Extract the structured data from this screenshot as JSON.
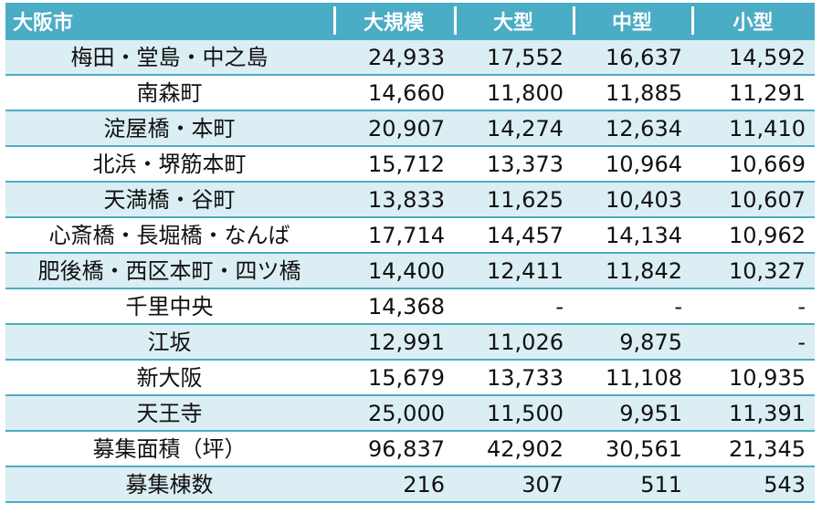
{
  "table": {
    "header": {
      "area": "大阪市",
      "cols": [
        "大規模",
        "大型",
        "中型",
        "小型"
      ]
    },
    "rows": [
      {
        "area": "梅田・堂島・中之島",
        "values": [
          "24,933",
          "17,552",
          "16,637",
          "14,592"
        ]
      },
      {
        "area": "南森町",
        "values": [
          "14,660",
          "11,800",
          "11,885",
          "11,291"
        ]
      },
      {
        "area": "淀屋橋・本町",
        "values": [
          "20,907",
          "14,274",
          "12,634",
          "11,410"
        ]
      },
      {
        "area": "北浜・堺筋本町",
        "values": [
          "15,712",
          "13,373",
          "10,964",
          "10,669"
        ]
      },
      {
        "area": "天満橋・谷町",
        "values": [
          "13,833",
          "11,625",
          "10,403",
          "10,607"
        ]
      },
      {
        "area": "心斎橋・長堀橋・なんば",
        "values": [
          "17,714",
          "14,457",
          "14,134",
          "10,962"
        ]
      },
      {
        "area": "肥後橋・西区本町・四ツ橋",
        "values": [
          "14,400",
          "12,411",
          "11,842",
          "10,327"
        ]
      },
      {
        "area": "千里中央",
        "values": [
          "14,368",
          "-",
          "-",
          "-"
        ]
      },
      {
        "area": "江坂",
        "values": [
          "12,991",
          "11,026",
          "9,875",
          "-"
        ]
      },
      {
        "area": "新大阪",
        "values": [
          "15,679",
          "13,733",
          "11,108",
          "10,935"
        ]
      },
      {
        "area": "天王寺",
        "values": [
          "25,000",
          "11,500",
          "9,951",
          "11,391"
        ]
      },
      {
        "area": "募集面積（坪）",
        "values": [
          "96,837",
          "42,902",
          "30,561",
          "21,345"
        ]
      },
      {
        "area": "募集棟数",
        "values": [
          "216",
          "307",
          "511",
          "543"
        ]
      }
    ]
  },
  "colors": {
    "header_bg": "#4bacc6",
    "stripe_bg": "#dbeef3",
    "rule": "#4bacc6"
  }
}
